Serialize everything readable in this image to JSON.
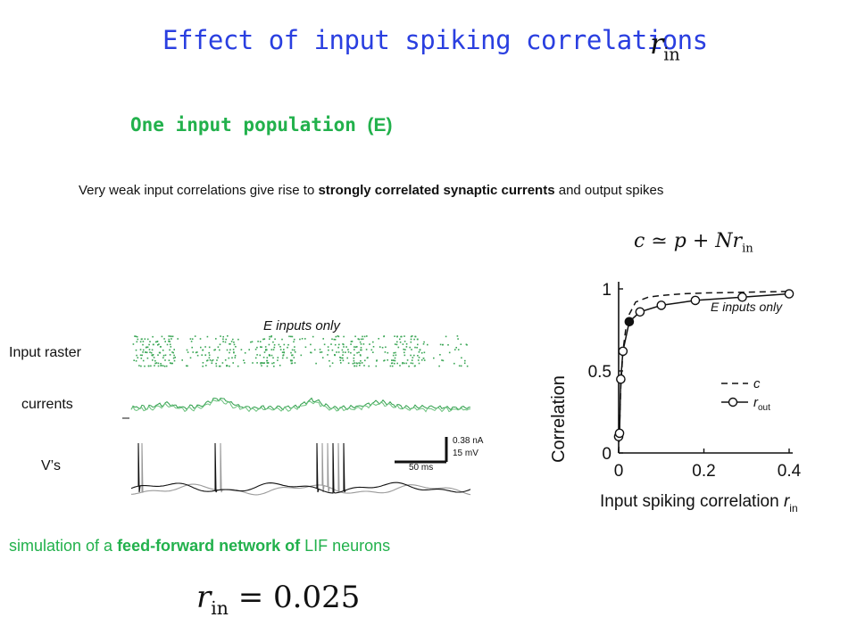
{
  "title": {
    "text": "Effect of input spiking correlations",
    "math_symbol": "r",
    "math_subscript": "in"
  },
  "subtitle": {
    "text": "One input population ",
    "paren": "(E)"
  },
  "description": {
    "part1": "Very weak input correlations give rise to ",
    "bold1": "strongly correlated synaptic currents",
    "part2": " and output spikes"
  },
  "formula": {
    "lhs": "c",
    "relation": "≃",
    "p": "p",
    "plus": "+",
    "N": "N",
    "r": "r",
    "sub": "in"
  },
  "sim_panel": {
    "header": "E inputs only",
    "labels": {
      "raster": "Input raster",
      "currents": "currents",
      "voltages": "V’s"
    },
    "scalebar": {
      "current": "0.38 nA",
      "voltage": "15 mV",
      "time": "50 ms"
    }
  },
  "chart_data": {
    "type": "line",
    "title": "",
    "xlabel": "Input spiking correlation",
    "xlabel_symbol": "r",
    "xlabel_subscript": "in",
    "ylabel": "Correlation",
    "xlim": [
      0,
      0.4
    ],
    "ylim": [
      0,
      1
    ],
    "xticks": [
      "0",
      "0.2",
      "0.4"
    ],
    "yticks": [
      "0",
      "0.5",
      "1"
    ],
    "annotation": "E inputs only",
    "legend": {
      "position": "right",
      "entries": [
        {
          "symbol": "c",
          "subscript": "",
          "style": "dashed"
        },
        {
          "symbol": "r",
          "subscript": "out",
          "style": "solid-circle"
        }
      ]
    },
    "series": [
      {
        "name": "c",
        "style": "dashed",
        "x": [
          0,
          0.002,
          0.005,
          0.01,
          0.02,
          0.04,
          0.07,
          0.1,
          0.15,
          0.2,
          0.3,
          0.4
        ],
        "y": [
          0,
          0.15,
          0.4,
          0.62,
          0.82,
          0.92,
          0.95,
          0.96,
          0.97,
          0.975,
          0.98,
          0.985
        ]
      },
      {
        "name": "r_out",
        "style": "solid-circle",
        "x": [
          0,
          0.002,
          0.005,
          0.01,
          0.025,
          0.05,
          0.1,
          0.18,
          0.29,
          0.4
        ],
        "y": [
          0.1,
          0.12,
          0.45,
          0.62,
          0.8,
          0.86,
          0.9,
          0.93,
          0.95,
          0.97
        ],
        "filled_index": 4
      }
    ]
  },
  "caption": {
    "part1": "simulation  of a ",
    "bold": "feed-forward network of",
    "part2": " LIF neurons"
  },
  "bottom_formula": {
    "r": "r",
    "sub": "in",
    "equals": "=",
    "value": "0.025"
  }
}
